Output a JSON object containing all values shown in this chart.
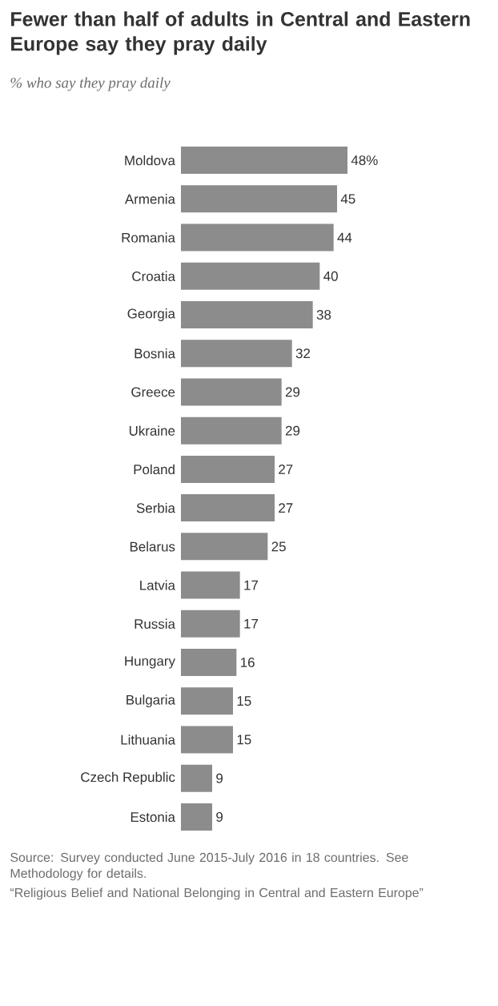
{
  "chart_data": {
    "type": "bar",
    "orientation": "horizontal",
    "title": "Fewer than half of adults in Central and Eastern Europe say they pray daily",
    "subtitle": "% who say they pray daily",
    "categories": [
      "Moldova",
      "Armenia",
      "Romania",
      "Croatia",
      "Georgia",
      "Bosnia",
      "Greece",
      "Ukraine",
      "Poland",
      "Serbia",
      "Belarus",
      "Latvia",
      "Russia",
      "Hungary",
      "Bulgaria",
      "Lithuania",
      "Czech Republic",
      "Estonia"
    ],
    "values": [
      48,
      45,
      44,
      40,
      38,
      32,
      29,
      29,
      27,
      27,
      25,
      17,
      17,
      16,
      15,
      15,
      9,
      9
    ],
    "value_labels": [
      "48%",
      "45",
      "44",
      "40",
      "38",
      "32",
      "29",
      "29",
      "27",
      "27",
      "25",
      "17",
      "17",
      "16",
      "15",
      "15",
      "9",
      "9"
    ],
    "color": "#8c8c8c",
    "annotations": [
      "Source: Survey conducted June 2015-July 2016 in 18 countries. See Methodology for details.",
      "“Religious Belief and National Belonging in Central and Eastern Europe”"
    ]
  }
}
